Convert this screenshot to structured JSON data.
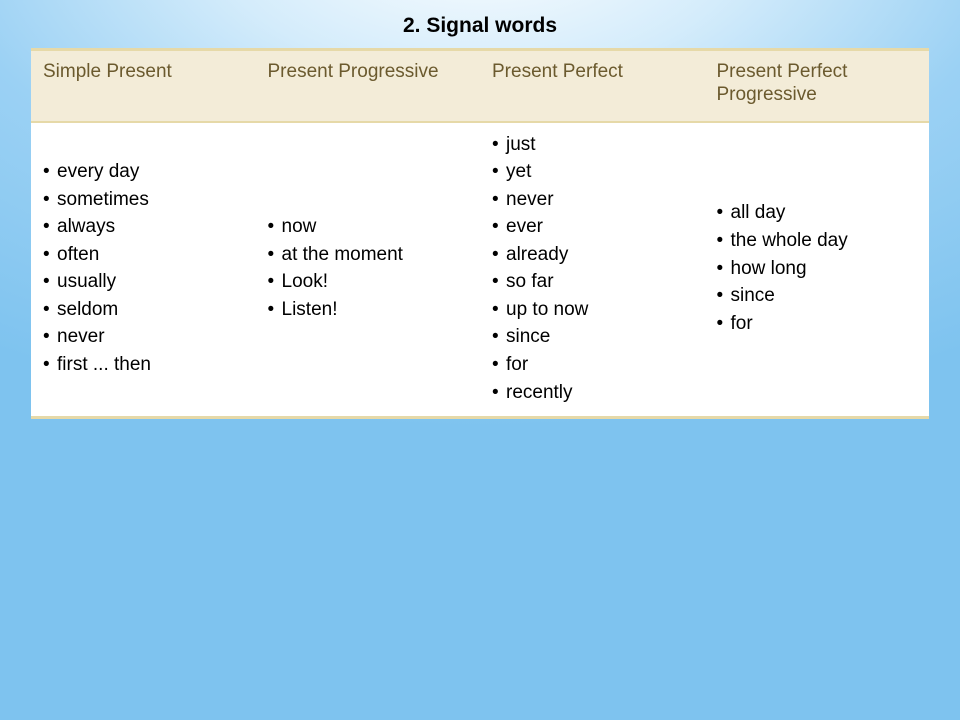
{
  "title": "2. Signal words",
  "title_fontsize": 21,
  "table": {
    "header_bg": "#f3ecd8",
    "header_text_color": "#6b5a2e",
    "border_color": "#e6d9a8",
    "cell_bg": "#ffffff",
    "cell_text_color": "#000000",
    "font_size": 19,
    "columns": [
      "Simple Present",
      "Present Progressive",
      "Present Perfect",
      "Present Perfect Progressive"
    ],
    "rows": [
      [
        [
          "every day",
          "sometimes",
          "always",
          "often",
          "usually",
          "seldom",
          "never",
          "first ... then"
        ],
        [
          "now",
          "at the moment",
          "Look!",
          "Listen!"
        ],
        [
          "just",
          "yet",
          "never",
          "ever",
          "already",
          "so far",
          "up to now",
          "since",
          "for",
          "recently"
        ],
        [
          "all day",
          "the whole day",
          "how long",
          "since",
          "for"
        ]
      ]
    ]
  },
  "background": {
    "gradient_inner": "#ffffff",
    "gradient_mid": "#9bd1f4",
    "gradient_outer": "#7ec3ef"
  }
}
